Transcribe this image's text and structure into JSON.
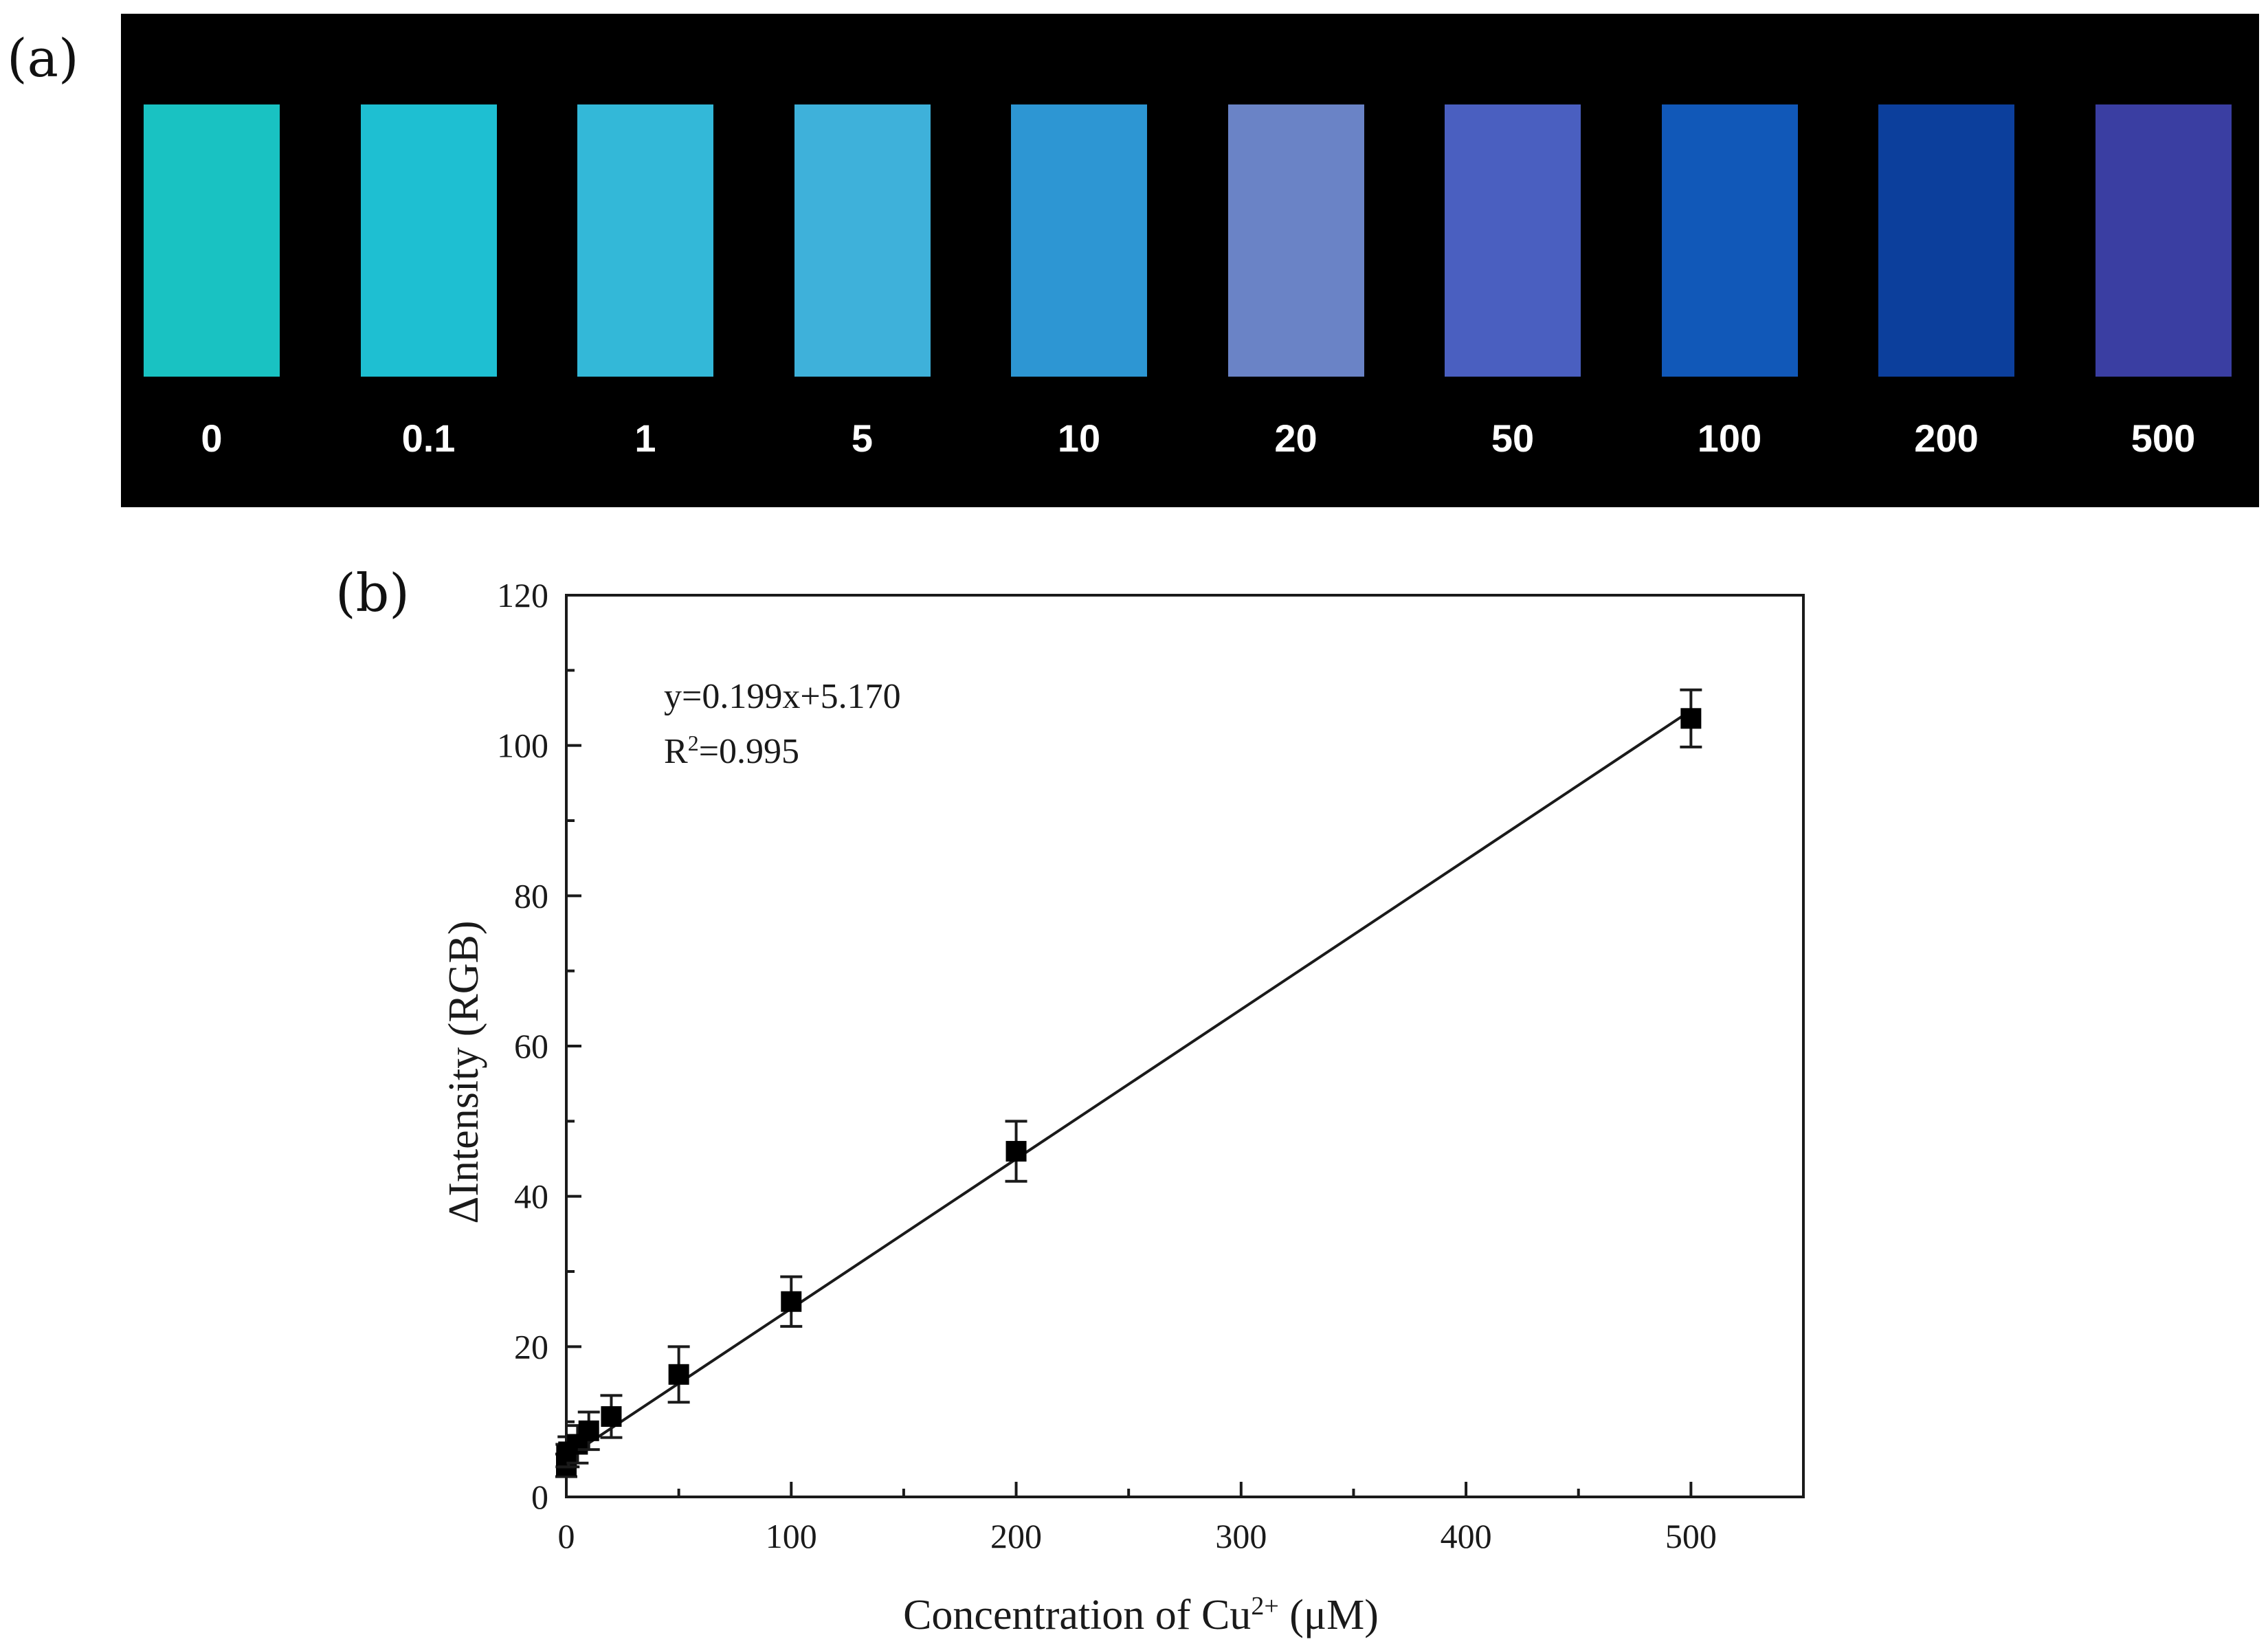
{
  "panels": {
    "a": "(a)",
    "b": "(b)"
  },
  "strip": {
    "samples": [
      {
        "label": "0",
        "color": "#19c2c2"
      },
      {
        "label": "0.1",
        "color": "#1ebfd2"
      },
      {
        "label": "1",
        "color": "#33b8d8"
      },
      {
        "label": "5",
        "color": "#3eb1da"
      },
      {
        "label": "10",
        "color": "#2d96d3"
      },
      {
        "label": "20",
        "color": "#6a83c6"
      },
      {
        "label": "50",
        "color": "#4a5fc0"
      },
      {
        "label": "100",
        "color": "#1158b8"
      },
      {
        "label": "200",
        "color": "#0c3f9c"
      },
      {
        "label": "500",
        "color": "#3a3ea2"
      }
    ]
  },
  "chart_data": {
    "type": "scatter",
    "xlabel_main": "Concentration of Cu",
    "xlabel_sup": "2+",
    "xlabel_unit": " (μM)",
    "ylabel": "ΔIntensity (RGB)",
    "xlim": [
      0,
      550
    ],
    "ylim": [
      0,
      120
    ],
    "xticks": [
      0,
      100,
      200,
      300,
      400,
      500
    ],
    "yticks": [
      0,
      20,
      40,
      60,
      80,
      100,
      120
    ],
    "grid": false,
    "fit": {
      "slope": 0.199,
      "intercept": 5.17,
      "x_range": [
        0,
        500
      ]
    },
    "equation_line1": "y=0.199x+5.170",
    "equation_r": "R",
    "equation_r_sup": "2",
    "equation_r_value": "=0.995",
    "points": [
      {
        "x": 0,
        "y": 4.2,
        "err": 1.5
      },
      {
        "x": 0.1,
        "y": 5.5,
        "err": 1.5
      },
      {
        "x": 1,
        "y": 6.0,
        "err": 2.0
      },
      {
        "x": 5,
        "y": 7.0,
        "err": 2.5
      },
      {
        "x": 10,
        "y": 8.8,
        "err": 2.5
      },
      {
        "x": 20,
        "y": 10.7,
        "err": 2.8
      },
      {
        "x": 50,
        "y": 16.3,
        "err": 3.7
      },
      {
        "x": 100,
        "y": 26.0,
        "err": 3.3
      },
      {
        "x": 200,
        "y": 46.0,
        "err": 4.0
      },
      {
        "x": 500,
        "y": 103.6,
        "err": 3.8
      }
    ]
  }
}
